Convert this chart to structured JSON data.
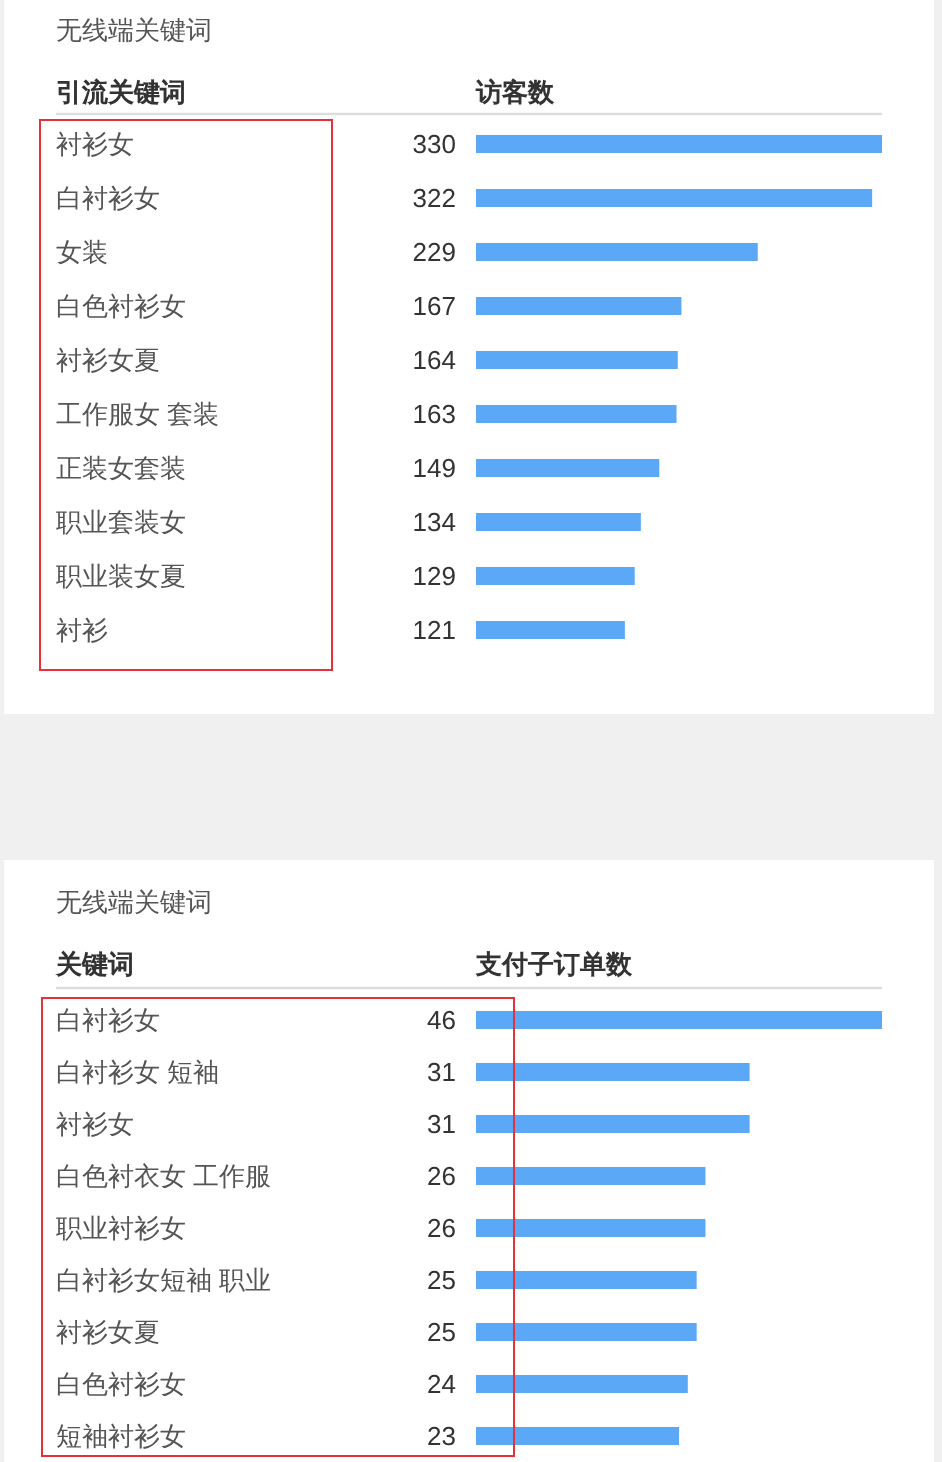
{
  "chart_data": [
    {
      "type": "bar",
      "orientation": "horizontal",
      "title": "无线端关键词",
      "ylabel": "引流关键词",
      "xlabel": "访客数",
      "categories": [
        "衬衫女",
        "白衬衫女",
        "女装",
        "白色衬衫女",
        "衬衫女夏",
        "工作服女 套装",
        "正装女套装",
        "职业套装女",
        "职业装女夏",
        "衬衫"
      ],
      "values": [
        330,
        322,
        229,
        167,
        164,
        163,
        149,
        134,
        129,
        121
      ],
      "color": "#5ba8f7",
      "data_labels": true
    },
    {
      "type": "bar",
      "orientation": "horizontal",
      "title": "无线端关键词",
      "ylabel": "关键词",
      "xlabel": "支付子订单数",
      "categories": [
        "白衬衫女",
        "白衬衫女 短袖",
        "衬衫女",
        "白色衬衣女 工作服",
        "职业衬衫女",
        "白衬衫女短袖 职业",
        "衬衫女夏",
        "白色衬衫女",
        "短袖衬衫女"
      ],
      "values": [
        46,
        31,
        31,
        26,
        26,
        25,
        25,
        24,
        23
      ],
      "color": "#5ba8f7",
      "data_labels": true
    }
  ]
}
